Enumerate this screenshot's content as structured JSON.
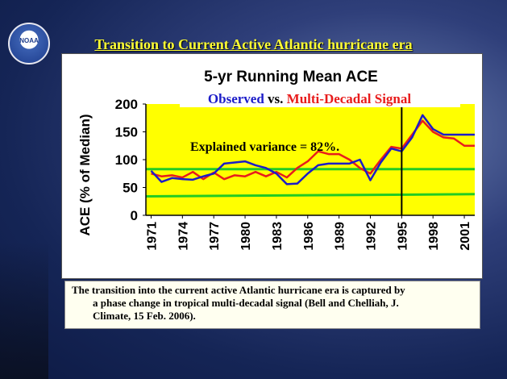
{
  "slide": {
    "title": "Transition to Current Active Atlantic hurricane era",
    "logo_text": "NOAA",
    "caption_lines": [
      "The transition into the current active Atlantic hurricane era is captured by",
      "a phase change in tropical multi-decadal signal (Bell and Chelliah, J.",
      "Climate, 15 Feb. 2006)."
    ]
  },
  "colors": {
    "plot_background": "#ffff00",
    "observed": "#1c1cc8",
    "multi_decadal": "#e81c1c",
    "reference_lines": "#22cc22",
    "vertical_marker": "#000000"
  },
  "chart_data": {
    "type": "line",
    "title": "5-yr Running Mean ACE",
    "subtitle_part1": "Observed",
    "subtitle_part2": " vs. ",
    "subtitle_part3": "Multi-Decadal Signal",
    "annotation": "Explained variance = 82%.",
    "ylabel": "ACE (% of Median)",
    "xlabel": "",
    "ylim": [
      0,
      200
    ],
    "yticks": [
      0,
      50,
      100,
      150,
      200
    ],
    "xlim": [
      1970.5,
      2002
    ],
    "xtick_labels": [
      "1971",
      "1974",
      "1977",
      "1980",
      "1983",
      "1986",
      "1989",
      "1992",
      "1995",
      "1998",
      "2001"
    ],
    "x": [
      1971,
      1972,
      1973,
      1974,
      1975,
      1976,
      1977,
      1978,
      1979,
      1980,
      1981,
      1982,
      1983,
      1984,
      1985,
      1986,
      1987,
      1988,
      1989,
      1990,
      1991,
      1992,
      1993,
      1994,
      1995,
      1996,
      1997,
      1998,
      1999,
      2000,
      2001,
      2002
    ],
    "series": [
      {
        "name": "Observed",
        "color": "#1c1cc8",
        "values": [
          80,
          60,
          67,
          65,
          64,
          70,
          75,
          93,
          95,
          97,
          90,
          85,
          75,
          56,
          57,
          75,
          90,
          93,
          93,
          93,
          100,
          63,
          95,
          120,
          115,
          140,
          180,
          155,
          145,
          145,
          145,
          145
        ]
      },
      {
        "name": "Multi-Decadal Signal",
        "color": "#e81c1c",
        "values": [
          75,
          70,
          72,
          68,
          78,
          65,
          77,
          65,
          72,
          70,
          78,
          70,
          78,
          68,
          85,
          97,
          115,
          110,
          110,
          100,
          85,
          75,
          100,
          123,
          120,
          145,
          170,
          150,
          140,
          138,
          125,
          125
        ]
      }
    ],
    "reference_lines": [
      {
        "from": [
          1970.5,
          83
        ],
        "to": [
          2002,
          83
        ]
      },
      {
        "from": [
          1970.5,
          34
        ],
        "to": [
          2002,
          38
        ]
      }
    ],
    "vertical_marker_x": 1995,
    "grid": false,
    "legend": "none"
  }
}
